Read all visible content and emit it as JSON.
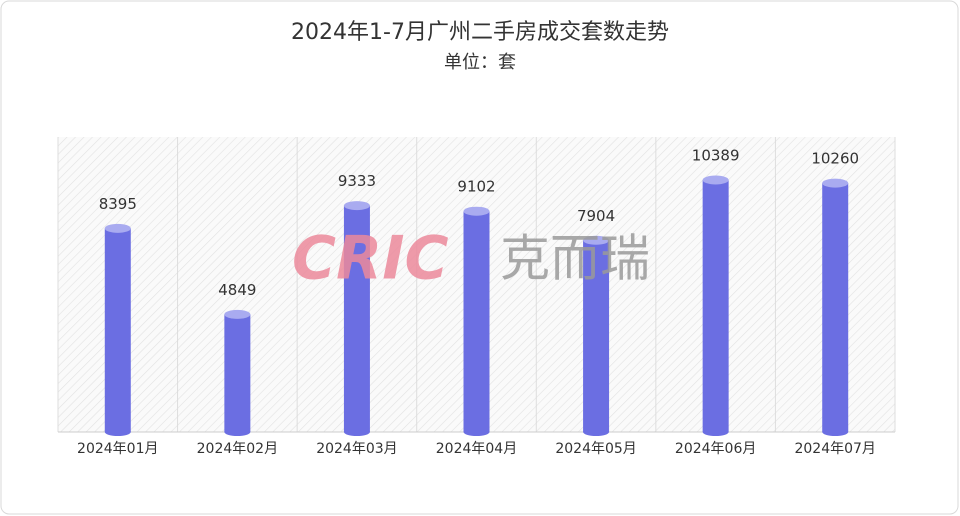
{
  "chart_data": {
    "type": "bar",
    "title": "2024年1-7月广州二手房成交套数走势",
    "subtitle": "单位：套",
    "watermark_logo": "CRIC",
    "watermark_text": "克而瑞",
    "categories": [
      "2024年01月",
      "2024年02月",
      "2024年03月",
      "2024年04月",
      "2024年05月",
      "2024年06月",
      "2024年07月"
    ],
    "values": [
      8395,
      4849,
      9333,
      9102,
      7904,
      10389,
      10260
    ],
    "color": "#6b6ee2"
  }
}
